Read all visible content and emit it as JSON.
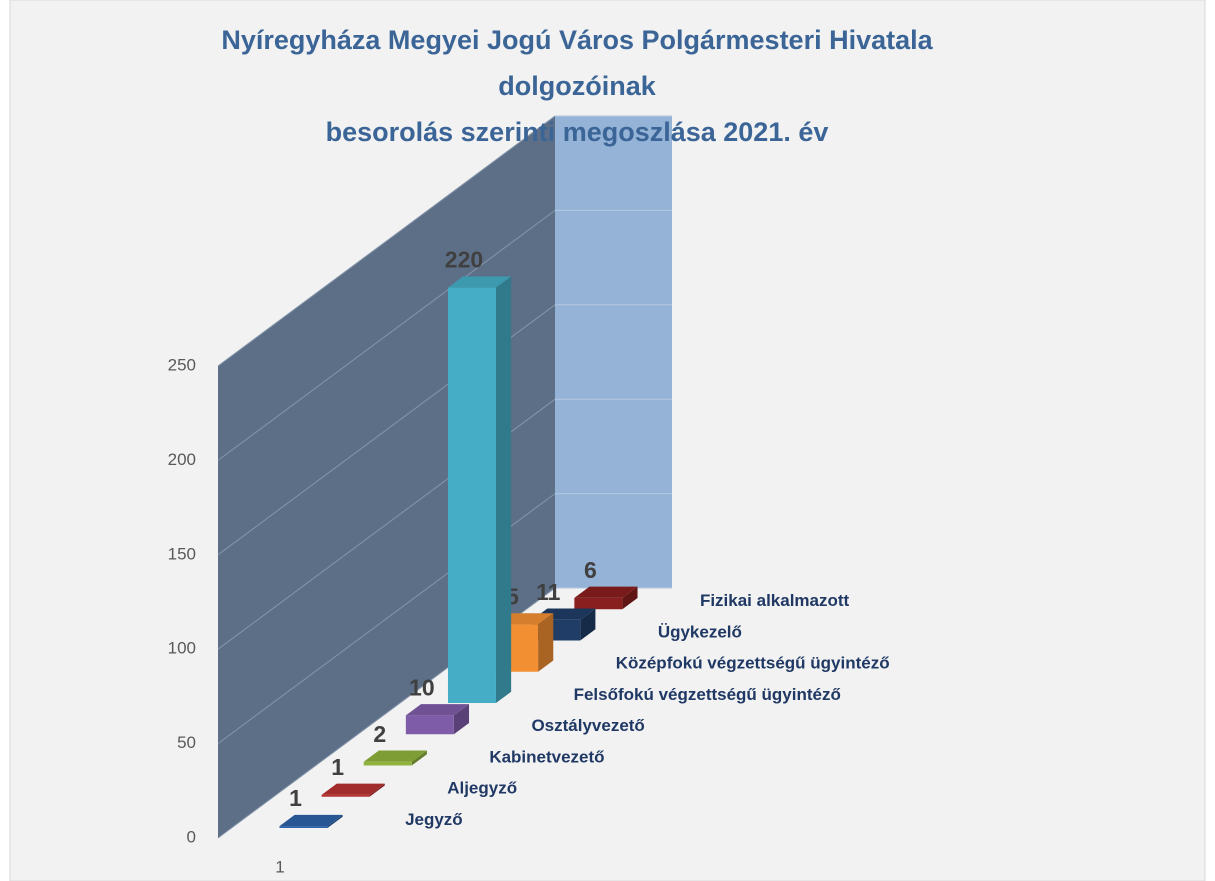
{
  "chart_data": {
    "type": "bar3d",
    "title": [
      "Nyíregyháza Megyei Jogú Város Polgármesteri Hivatala",
      "dolgozóinak",
      "besorolás szerinti megoszlása 2021. év"
    ],
    "series_name": "1",
    "categories": [
      "Jegyző",
      "Aljegyző",
      "Kabinetvezető",
      "Osztályvezető",
      "Felsőfokú végzettségű ügyintéző",
      "Középfokú végzettségű ügyintéző",
      "Ügykezelő",
      "Fizikai alkalmazott"
    ],
    "values": [
      1,
      1,
      2,
      10,
      220,
      25,
      11,
      6
    ],
    "colors": [
      "#2e62a8",
      "#b83232",
      "#8fb33c",
      "#7f5ca8",
      "#45aec6",
      "#f28f33",
      "#1f3d66",
      "#8a1f1f"
    ],
    "ylim": [
      0,
      250
    ],
    "yticks": [
      0,
      50,
      100,
      150,
      200,
      250
    ],
    "grid": true,
    "wall_colors": [
      "#5d6f87",
      "#95b3d7"
    ]
  }
}
